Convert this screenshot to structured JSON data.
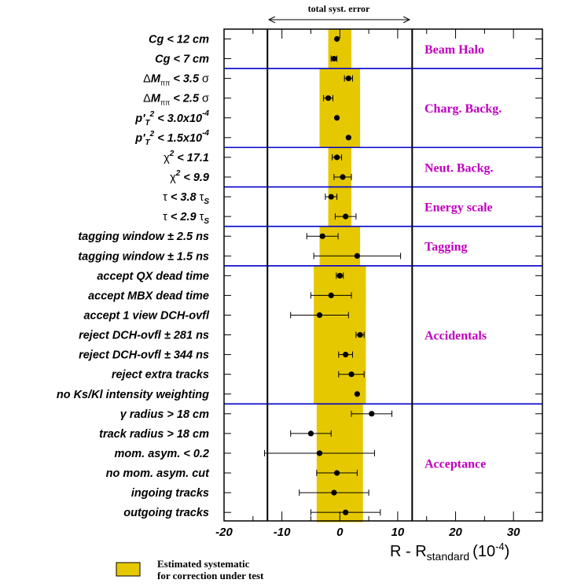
{
  "chart_data": {
    "type": "scatter",
    "top_label": "total syst. error",
    "x_title": {
      "main": "R - R",
      "sub": "standard",
      "unit": "(10",
      "unit_exp": "-4",
      "unit_close": ")"
    },
    "xlim": [
      -20,
      35
    ],
    "x_ticks": [
      -20,
      -10,
      0,
      10,
      20,
      30
    ],
    "total_syst_error": [
      -12.5,
      12.5
    ],
    "colors": {
      "band": "#e6c800",
      "group_line": "#0000cc",
      "group_label": "#c000c0",
      "marker": "#000000"
    },
    "groups": [
      {
        "name": "Beam Halo",
        "start": 0,
        "end": 1,
        "band": [
          -2,
          2
        ]
      },
      {
        "name": "Charg. Backg.",
        "start": 2,
        "end": 5,
        "band": [
          -3.5,
          3.5
        ]
      },
      {
        "name": "Neut. Backg.",
        "start": 6,
        "end": 7,
        "band": [
          -2,
          2
        ]
      },
      {
        "name": "Energy scale",
        "start": 8,
        "end": 9,
        "band": [
          -2,
          2
        ]
      },
      {
        "name": "Tagging",
        "start": 10,
        "end": 11,
        "band": [
          -3.5,
          3.5
        ]
      },
      {
        "name": "Accidentals",
        "start": 12,
        "end": 18,
        "band": [
          -4.5,
          4.5
        ]
      },
      {
        "name": "Acceptance",
        "start": 19,
        "end": 24,
        "band": [
          -4,
          4
        ]
      }
    ],
    "rows": [
      {
        "label": "Cg < 12 cm",
        "value": -0.5,
        "err": 0
      },
      {
        "label": "Cg < 7 cm",
        "value": -1,
        "err": 0.5
      },
      {
        "label": "ΔMππ < 3.5 σ",
        "value": 1.5,
        "err": 0.7
      },
      {
        "label": "ΔMππ < 2.5 σ",
        "value": -2,
        "err": 0.8
      },
      {
        "label": "p'T2 < 3.0x10-4",
        "value": -0.5,
        "err": 0
      },
      {
        "label": "p'T2 < 1.5x10-4",
        "value": 1.5,
        "err": 0
      },
      {
        "label": "χ2 < 17.1",
        "value": -0.5,
        "err": 0.8
      },
      {
        "label": "χ2 < 9.9",
        "value": 0.5,
        "err": 1.5
      },
      {
        "label": "τ < 3.8 τS",
        "value": -1.5,
        "err": 1
      },
      {
        "label": "τ < 2.9 τS",
        "value": 1,
        "err": 1.8
      },
      {
        "label": "tagging window ± 2.5 ns",
        "value": -3,
        "err": 2.7
      },
      {
        "label": "tagging window ± 1.5 ns",
        "value": 3,
        "err": 7.5
      },
      {
        "label": "accept QX dead time",
        "value": 0,
        "err": 0.6
      },
      {
        "label": "accept MBX dead time",
        "value": -1.5,
        "err": 3.5
      },
      {
        "label": "accept 1 view DCH-ovfl",
        "value": -3.5,
        "err": 5
      },
      {
        "label": "reject DCH-ovfl ± 281 ns",
        "value": 3.5,
        "err": 0.7
      },
      {
        "label": "reject DCH-ovfl ± 344 ns",
        "value": 1,
        "err": 1.2
      },
      {
        "label": "reject extra tracks",
        "value": 2,
        "err": 2.2
      },
      {
        "label": "no Ks/Kl intensity weighting",
        "value": 3,
        "err": 0
      },
      {
        "label": "γ radius > 18 cm",
        "value": 5.5,
        "err": 3.5
      },
      {
        "label": "track radius > 18 cm",
        "value": -5,
        "err": 3.5
      },
      {
        "label": "mom. asym. < 0.2",
        "value": -3.5,
        "err": 9.5
      },
      {
        "label": "no mom. asym. cut",
        "value": -0.5,
        "err": 3.5
      },
      {
        "label": "ingoing tracks",
        "value": -1,
        "err": 6
      },
      {
        "label": "outgoing tracks",
        "value": 1,
        "err": 6
      }
    ]
  },
  "legend": {
    "line1": "Estimated systematic",
    "line2": "for correction under test"
  }
}
